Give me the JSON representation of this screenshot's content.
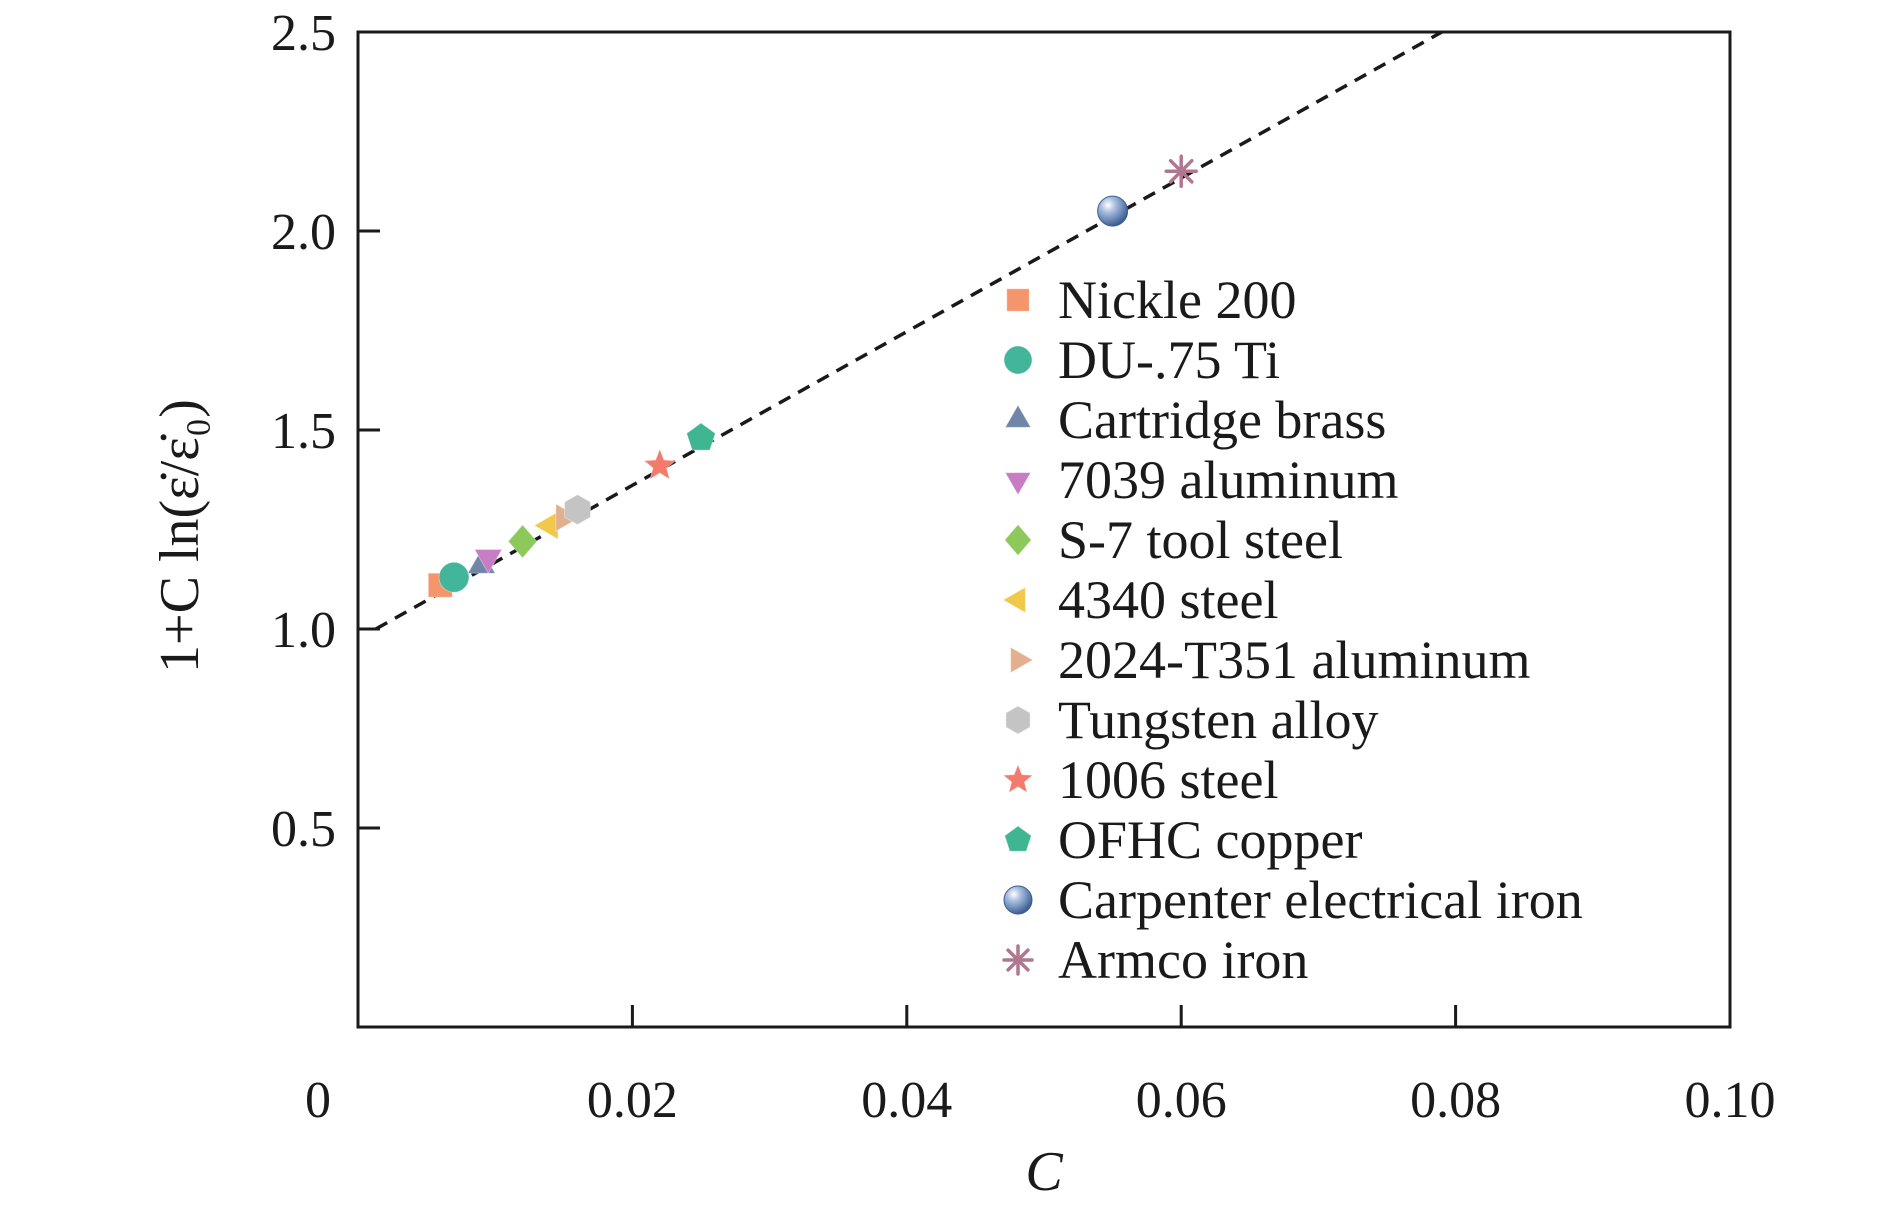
{
  "chart_data": {
    "type": "scatter",
    "xlabel": "C",
    "ylabel": "1+C ln(ε̇/ε̇₀)",
    "xlim": [
      0,
      0.1
    ],
    "ylim": [
      0,
      2.5
    ],
    "x_ticks": [
      0.02,
      0.04,
      0.06,
      0.08,
      0.1
    ],
    "x_tick_labels": [
      "0.02",
      "0.04",
      "0.06",
      "0.08",
      "0.10"
    ],
    "x_origin_label": "0",
    "y_ticks": [
      0.5,
      1.0,
      1.5,
      2.0,
      2.5
    ],
    "y_tick_labels": [
      "0.5",
      "1.0",
      "1.5",
      "2.0",
      "2.5"
    ],
    "grid": false,
    "legend_position": "right",
    "fit_line": {
      "style": "dashed",
      "color": "#1a1a1a",
      "from": [
        0.0013,
        1.0
      ],
      "to": [
        0.079,
        2.5
      ]
    },
    "series": [
      {
        "name": "Nickle 200",
        "marker": "square",
        "color": "#f4956b",
        "x": 0.006,
        "y": 1.11
      },
      {
        "name": "DU-.75 Ti",
        "marker": "circle",
        "color": "#43b59a",
        "x": 0.007,
        "y": 1.13
      },
      {
        "name": "Cartridge brass",
        "marker": "triangle-up",
        "color": "#6f86a8",
        "x": 0.009,
        "y": 1.16
      },
      {
        "name": "7039 aluminum",
        "marker": "triangle-down",
        "color": "#c77cc3",
        "x": 0.0095,
        "y": 1.18
      },
      {
        "name": "S-7 tool steel",
        "marker": "diamond",
        "color": "#8cc85a",
        "x": 0.012,
        "y": 1.22
      },
      {
        "name": "4340 steel",
        "marker": "triangle-left",
        "color": "#f2c84b",
        "x": 0.014,
        "y": 1.26
      },
      {
        "name": "2024-T351 aluminum",
        "marker": "triangle-right",
        "color": "#e3b08f",
        "x": 0.015,
        "y": 1.28
      },
      {
        "name": "Tungsten alloy",
        "marker": "hexagon",
        "color": "#c4c4c4",
        "x": 0.016,
        "y": 1.3
      },
      {
        "name": "1006 steel",
        "marker": "star",
        "color": "#f47a6e",
        "x": 0.022,
        "y": 1.41
      },
      {
        "name": "OFHC copper",
        "marker": "pentagon",
        "color": "#3fb592",
        "x": 0.025,
        "y": 1.48
      },
      {
        "name": "Carpenter electrical iron",
        "marker": "sphere",
        "color": "#7f9cc6",
        "x": 0.055,
        "y": 2.05
      },
      {
        "name": "Armco iron",
        "marker": "asterisk",
        "color": "#b07790",
        "x": 0.06,
        "y": 2.15
      }
    ]
  }
}
